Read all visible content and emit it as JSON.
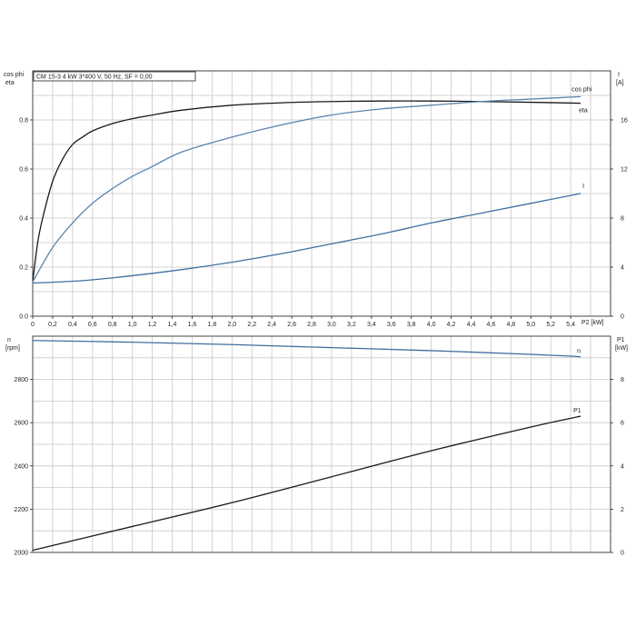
{
  "info_box": "CM 15-3   4 kW   3*400 V, 50 Hz, SF = 0,00",
  "colors": {
    "eta": "#1a1a1a",
    "cos_phi": "#5b84b1",
    "current": "#3f6f9f",
    "speed": "#3f6f9f",
    "p1": "#1a1a1a"
  },
  "chart_data": [
    {
      "type": "line",
      "xlabel": "P2 [kW]",
      "ylabel_left": [
        "cos phi",
        "eta"
      ],
      "ylabel_right": [
        "I",
        "[A]"
      ],
      "xlim": [
        0,
        5.8
      ],
      "ylim_left": [
        0,
        1.0
      ],
      "ylim_right": [
        0,
        20
      ],
      "x_ticks": [
        "0",
        "0,2",
        "0,4",
        "0,6",
        "0,8",
        "1,0",
        "1,2",
        "1,4",
        "1,6",
        "1,8",
        "2,0",
        "2,2",
        "2,4",
        "2,6",
        "2,8",
        "3,0",
        "3,2",
        "3,4",
        "3,6",
        "3,8",
        "4,0",
        "4,2",
        "4,4",
        "4,6",
        "4,8",
        "5,0",
        "5,2",
        "5,4"
      ],
      "y_ticks_left": [
        "0.0",
        "0.2",
        "0.4",
        "0.6",
        "0.8"
      ],
      "y_ticks_right": [
        "0",
        "4",
        "8",
        "12",
        "16"
      ],
      "grid": true,
      "series": [
        {
          "name": "eta",
          "axis": "left",
          "x": [
            0,
            0.05,
            0.1,
            0.2,
            0.3,
            0.4,
            0.5,
            0.6,
            0.8,
            1.0,
            1.2,
            1.5,
            2.0,
            2.5,
            3.0,
            3.5,
            4.0,
            4.5,
            5.0,
            5.5
          ],
          "y": [
            0.14,
            0.3,
            0.4,
            0.55,
            0.64,
            0.7,
            0.73,
            0.755,
            0.785,
            0.805,
            0.82,
            0.84,
            0.86,
            0.87,
            0.875,
            0.877,
            0.877,
            0.875,
            0.872,
            0.868
          ]
        },
        {
          "name": "cos phi",
          "axis": "left",
          "x": [
            0,
            0.2,
            0.4,
            0.6,
            0.8,
            1.0,
            1.2,
            1.5,
            2.0,
            2.5,
            3.0,
            3.5,
            4.0,
            4.5,
            5.0,
            5.5
          ],
          "y": [
            0.14,
            0.28,
            0.38,
            0.46,
            0.52,
            0.57,
            0.61,
            0.67,
            0.73,
            0.78,
            0.82,
            0.845,
            0.86,
            0.875,
            0.885,
            0.895
          ]
        },
        {
          "name": "I",
          "axis": "right",
          "x": [
            0,
            0.5,
            1.0,
            1.5,
            2.0,
            2.5,
            3.0,
            3.5,
            4.0,
            4.5,
            5.0,
            5.5
          ],
          "y": [
            2.7,
            2.9,
            3.3,
            3.8,
            4.4,
            5.1,
            5.9,
            6.7,
            7.6,
            8.4,
            9.2,
            10.0
          ]
        }
      ]
    },
    {
      "type": "line",
      "xlabel": "",
      "ylabel_left": [
        "n",
        "[rpm]"
      ],
      "ylabel_right": [
        "P1",
        "[kW]"
      ],
      "xlim": [
        0,
        5.8
      ],
      "ylim_left": [
        2000,
        3000
      ],
      "ylim_right": [
        0,
        10
      ],
      "y_ticks_left": [
        "2000",
        "2200",
        "2400",
        "2600",
        "2800"
      ],
      "y_ticks_right": [
        "0",
        "2",
        "4",
        "6",
        "8"
      ],
      "grid": true,
      "series": [
        {
          "name": "n",
          "axis": "left",
          "x": [
            0,
            1.0,
            2.0,
            3.0,
            4.0,
            5.0,
            5.5
          ],
          "y": [
            2980,
            2972,
            2961,
            2947,
            2933,
            2916,
            2905
          ]
        },
        {
          "name": "P1",
          "axis": "right",
          "x": [
            0,
            1.0,
            2.0,
            3.0,
            4.0,
            5.0,
            5.5
          ],
          "y": [
            0.1,
            1.2,
            2.3,
            3.5,
            4.7,
            5.8,
            6.3
          ]
        }
      ]
    }
  ]
}
